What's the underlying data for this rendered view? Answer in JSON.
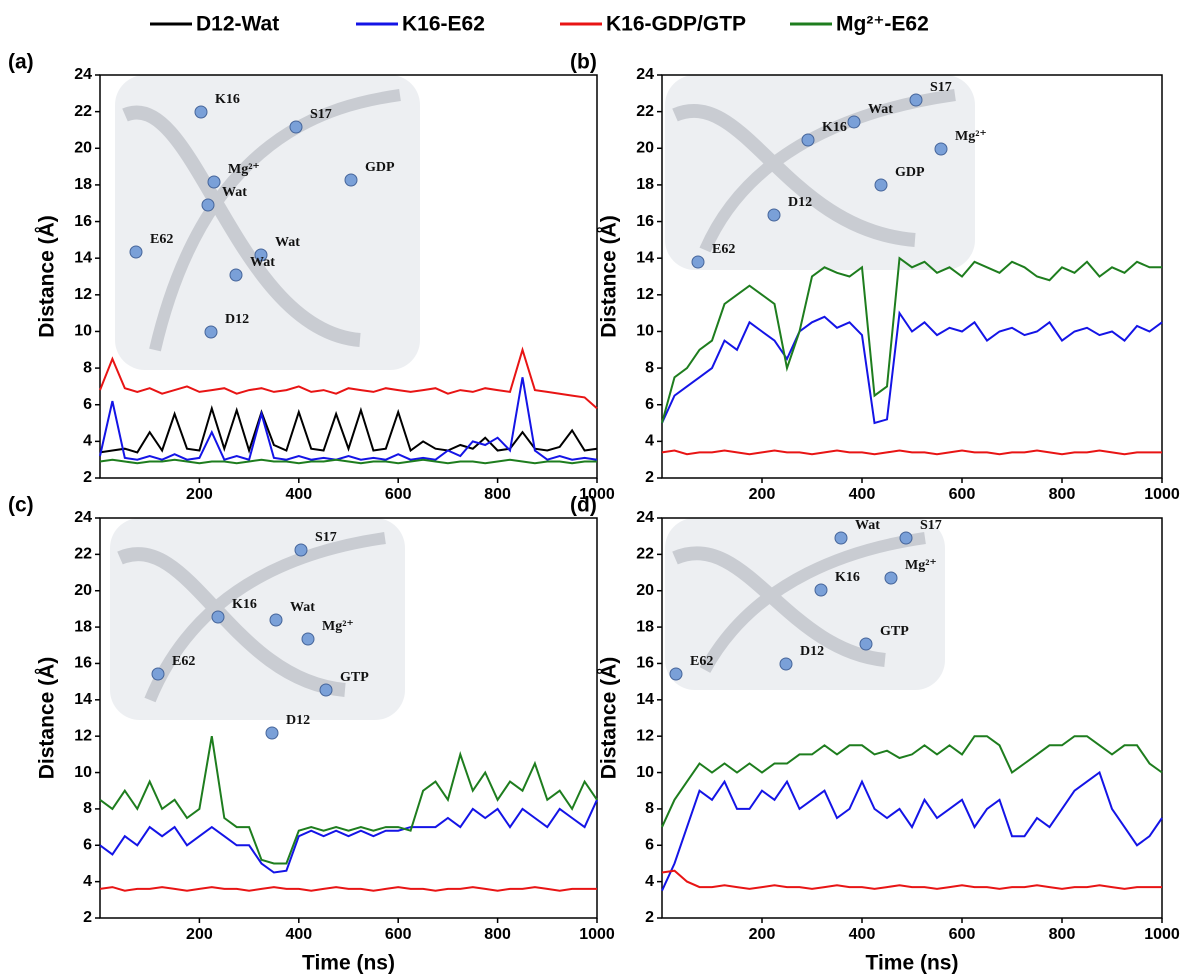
{
  "chart_data": [
    {
      "type": "line",
      "title": "(a)",
      "ylabel": "Distance (Å)",
      "x": [
        0,
        25,
        50,
        75,
        100,
        125,
        150,
        175,
        200,
        225,
        250,
        275,
        300,
        325,
        350,
        375,
        400,
        425,
        450,
        475,
        500,
        525,
        550,
        575,
        600,
        625,
        650,
        675,
        700,
        725,
        750,
        775,
        800,
        825,
        850,
        875,
        900,
        925,
        950,
        975,
        1000
      ],
      "xlim": [
        0,
        1000
      ],
      "ylim": [
        2,
        24
      ],
      "xticks": [
        200,
        400,
        600,
        800,
        1000
      ],
      "yticks": [
        2,
        4,
        6,
        8,
        10,
        12,
        14,
        16,
        18,
        20,
        22,
        24
      ],
      "series": [
        {
          "name": "D12-Wat",
          "color": "#000000",
          "values": [
            3.4,
            3.5,
            3.6,
            3.4,
            4.5,
            3.5,
            5.5,
            3.6,
            3.5,
            5.8,
            3.6,
            5.7,
            3.5,
            5.6,
            3.8,
            3.5,
            5.6,
            3.6,
            3.5,
            5.5,
            3.6,
            5.7,
            3.5,
            3.6,
            5.6,
            3.5,
            4.0,
            3.6,
            3.5,
            3.8,
            3.6,
            4.2,
            3.5,
            3.6,
            4.5,
            3.6,
            3.5,
            3.7,
            4.6,
            3.5,
            3.6
          ]
        },
        {
          "name": "K16-E62",
          "color": "#1414e6",
          "values": [
            3.2,
            6.2,
            3.1,
            3.0,
            3.2,
            3.0,
            3.3,
            3.0,
            3.1,
            4.5,
            3.0,
            3.2,
            3.0,
            5.5,
            3.1,
            3.0,
            3.2,
            3.0,
            3.1,
            3.0,
            3.2,
            3.0,
            3.1,
            3.0,
            3.3,
            3.0,
            3.1,
            3.0,
            3.5,
            3.2,
            4.0,
            3.8,
            4.2,
            3.5,
            7.5,
            3.5,
            3.0,
            3.2,
            3.0,
            3.1,
            3.0
          ]
        },
        {
          "name": "K16-GDP/GTP",
          "color": "#e81414",
          "values": [
            6.8,
            8.5,
            6.9,
            6.7,
            6.9,
            6.6,
            6.8,
            7.0,
            6.7,
            6.8,
            6.9,
            6.6,
            6.8,
            6.9,
            6.7,
            6.8,
            7.0,
            6.7,
            6.8,
            6.6,
            6.9,
            6.8,
            6.7,
            6.9,
            6.8,
            6.7,
            6.8,
            6.9,
            6.6,
            6.8,
            6.7,
            6.9,
            6.8,
            6.7,
            9.0,
            6.8,
            6.7,
            6.6,
            6.5,
            6.4,
            5.8
          ]
        },
        {
          "name": "Mg²⁺-E62",
          "color": "#1e7d1e",
          "values": [
            2.9,
            3.0,
            2.9,
            2.8,
            2.9,
            2.9,
            3.0,
            2.9,
            2.8,
            2.9,
            2.9,
            2.8,
            2.9,
            3.0,
            2.9,
            2.9,
            2.8,
            2.9,
            2.9,
            3.0,
            2.9,
            2.8,
            2.9,
            2.9,
            2.8,
            2.9,
            3.0,
            2.9,
            2.8,
            2.9,
            2.9,
            2.8,
            2.9,
            3.0,
            2.9,
            2.8,
            2.9,
            2.9,
            2.8,
            2.9,
            2.9
          ]
        }
      ],
      "inset_labels": [
        "K16",
        "S17",
        "GDP",
        "Mg²⁺",
        "Wat",
        "Wat",
        "Wat",
        "E62",
        "D12"
      ]
    },
    {
      "type": "line",
      "title": "(b)",
      "ylabel": "Distance (Å)",
      "x": [
        0,
        25,
        50,
        75,
        100,
        125,
        150,
        175,
        200,
        225,
        250,
        275,
        300,
        325,
        350,
        375,
        400,
        425,
        450,
        475,
        500,
        525,
        550,
        575,
        600,
        625,
        650,
        675,
        700,
        725,
        750,
        775,
        800,
        825,
        850,
        875,
        900,
        925,
        950,
        975,
        1000
      ],
      "xlim": [
        0,
        1000
      ],
      "ylim": [
        2,
        24
      ],
      "xticks": [
        200,
        400,
        600,
        800,
        1000
      ],
      "yticks": [
        2,
        4,
        6,
        8,
        10,
        12,
        14,
        16,
        18,
        20,
        22,
        24
      ],
      "series": [
        {
          "name": "K16-E62",
          "color": "#1414e6",
          "values": [
            5.0,
            6.5,
            7.0,
            7.5,
            8.0,
            9.5,
            9.0,
            10.5,
            10.0,
            9.5,
            8.5,
            10.0,
            10.5,
            10.8,
            10.2,
            10.5,
            9.8,
            5.0,
            5.2,
            11.0,
            10.0,
            10.5,
            9.8,
            10.2,
            10.0,
            10.5,
            9.5,
            10.0,
            10.2,
            9.8,
            10.0,
            10.5,
            9.5,
            10.0,
            10.2,
            9.8,
            10.0,
            9.5,
            10.3,
            10.0,
            10.5
          ]
        },
        {
          "name": "K16-GDP/GTP",
          "color": "#e81414",
          "values": [
            3.4,
            3.5,
            3.3,
            3.4,
            3.4,
            3.5,
            3.4,
            3.3,
            3.4,
            3.5,
            3.4,
            3.4,
            3.3,
            3.4,
            3.5,
            3.4,
            3.4,
            3.3,
            3.4,
            3.5,
            3.4,
            3.4,
            3.3,
            3.4,
            3.5,
            3.4,
            3.4,
            3.3,
            3.4,
            3.4,
            3.5,
            3.4,
            3.3,
            3.4,
            3.4,
            3.5,
            3.4,
            3.3,
            3.4,
            3.4,
            3.4
          ]
        },
        {
          "name": "Mg²⁺-E62",
          "color": "#1e7d1e",
          "values": [
            5.0,
            7.5,
            8.0,
            9.0,
            9.5,
            11.5,
            12.0,
            12.5,
            12.0,
            11.5,
            8.0,
            10.0,
            13.0,
            13.5,
            13.2,
            13.0,
            13.5,
            6.5,
            7.0,
            14.0,
            13.5,
            13.8,
            13.2,
            13.5,
            13.0,
            13.8,
            13.5,
            13.2,
            13.8,
            13.5,
            13.0,
            12.8,
            13.5,
            13.2,
            13.8,
            13.0,
            13.5,
            13.2,
            13.8,
            13.5,
            13.5
          ]
        }
      ],
      "inset_labels": [
        "S17",
        "Wat",
        "K16",
        "Mg²⁺",
        "GDP",
        "D12",
        "E62"
      ]
    },
    {
      "type": "line",
      "title": "(c)",
      "xlabel": "Time (ns)",
      "ylabel": "Distance (Å)",
      "x": [
        0,
        25,
        50,
        75,
        100,
        125,
        150,
        175,
        200,
        225,
        250,
        275,
        300,
        325,
        350,
        375,
        400,
        425,
        450,
        475,
        500,
        525,
        550,
        575,
        600,
        625,
        650,
        675,
        700,
        725,
        750,
        775,
        800,
        825,
        850,
        875,
        900,
        925,
        950,
        975,
        1000
      ],
      "xlim": [
        0,
        1000
      ],
      "ylim": [
        2,
        24
      ],
      "xticks": [
        200,
        400,
        600,
        800,
        1000
      ],
      "yticks": [
        2,
        4,
        6,
        8,
        10,
        12,
        14,
        16,
        18,
        20,
        22,
        24
      ],
      "series": [
        {
          "name": "K16-E62",
          "color": "#1414e6",
          "values": [
            6.0,
            5.5,
            6.5,
            6.0,
            7.0,
            6.5,
            7.0,
            6.0,
            6.5,
            7.0,
            6.5,
            6.0,
            6.0,
            5.0,
            4.5,
            4.6,
            6.5,
            6.8,
            6.5,
            6.8,
            6.5,
            6.8,
            6.5,
            6.8,
            6.8,
            7.0,
            7.0,
            7.0,
            7.5,
            7.0,
            8.0,
            7.5,
            8.0,
            7.0,
            8.0,
            7.5,
            7.0,
            8.0,
            7.5,
            7.0,
            8.5
          ]
        },
        {
          "name": "K16-GDP/GTP",
          "color": "#e81414",
          "values": [
            3.6,
            3.7,
            3.5,
            3.6,
            3.6,
            3.7,
            3.6,
            3.5,
            3.6,
            3.7,
            3.6,
            3.6,
            3.5,
            3.6,
            3.7,
            3.6,
            3.6,
            3.5,
            3.6,
            3.7,
            3.6,
            3.6,
            3.5,
            3.6,
            3.7,
            3.6,
            3.6,
            3.5,
            3.6,
            3.6,
            3.7,
            3.6,
            3.5,
            3.6,
            3.6,
            3.7,
            3.6,
            3.5,
            3.6,
            3.6,
            3.6
          ]
        },
        {
          "name": "Mg²⁺-E62",
          "color": "#1e7d1e",
          "values": [
            8.5,
            8.0,
            9.0,
            8.0,
            9.5,
            8.0,
            8.5,
            7.5,
            8.0,
            12.0,
            7.5,
            7.0,
            7.0,
            5.2,
            5.0,
            5.0,
            6.8,
            7.0,
            6.8,
            7.0,
            6.8,
            7.0,
            6.8,
            7.0,
            7.0,
            6.8,
            9.0,
            9.5,
            8.5,
            11.0,
            9.0,
            10.0,
            8.5,
            9.5,
            9.0,
            10.5,
            8.5,
            9.0,
            8.0,
            9.5,
            8.5
          ]
        }
      ],
      "inset_labels": [
        "S17",
        "K16",
        "Wat",
        "Mg²⁺",
        "E62",
        "GTP",
        "D12"
      ]
    },
    {
      "type": "line",
      "title": "(d)",
      "xlabel": "Time (ns)",
      "ylabel": "Distance (Å)",
      "x": [
        0,
        25,
        50,
        75,
        100,
        125,
        150,
        175,
        200,
        225,
        250,
        275,
        300,
        325,
        350,
        375,
        400,
        425,
        450,
        475,
        500,
        525,
        550,
        575,
        600,
        625,
        650,
        675,
        700,
        725,
        750,
        775,
        800,
        825,
        850,
        875,
        900,
        925,
        950,
        975,
        1000
      ],
      "xlim": [
        0,
        1000
      ],
      "ylim": [
        2,
        24
      ],
      "xticks": [
        200,
        400,
        600,
        800,
        1000
      ],
      "yticks": [
        2,
        4,
        6,
        8,
        10,
        12,
        14,
        16,
        18,
        20,
        22,
        24
      ],
      "series": [
        {
          "name": "K16-E62",
          "color": "#1414e6",
          "values": [
            3.5,
            5.0,
            7.0,
            9.0,
            8.5,
            9.5,
            8.0,
            8.0,
            9.0,
            8.5,
            9.5,
            8.0,
            8.5,
            9.0,
            7.5,
            8.0,
            9.5,
            8.0,
            7.5,
            8.0,
            7.0,
            8.5,
            7.5,
            8.0,
            8.5,
            7.0,
            8.0,
            8.5,
            6.5,
            6.5,
            7.5,
            7.0,
            8.0,
            9.0,
            9.5,
            10.0,
            8.0,
            7.0,
            6.0,
            6.5,
            7.5
          ]
        },
        {
          "name": "K16-GDP/GTP",
          "color": "#e81414",
          "values": [
            4.5,
            4.6,
            4.0,
            3.7,
            3.7,
            3.8,
            3.7,
            3.6,
            3.7,
            3.8,
            3.7,
            3.7,
            3.6,
            3.7,
            3.8,
            3.7,
            3.7,
            3.6,
            3.7,
            3.8,
            3.7,
            3.7,
            3.6,
            3.7,
            3.8,
            3.7,
            3.7,
            3.6,
            3.7,
            3.7,
            3.8,
            3.7,
            3.6,
            3.7,
            3.7,
            3.8,
            3.7,
            3.6,
            3.7,
            3.7,
            3.7
          ]
        },
        {
          "name": "Mg²⁺-E62",
          "color": "#1e7d1e",
          "values": [
            7.0,
            8.5,
            9.5,
            10.5,
            10.0,
            10.5,
            10.0,
            10.5,
            10.0,
            10.5,
            10.5,
            11.0,
            11.0,
            11.5,
            11.0,
            11.5,
            11.5,
            11.0,
            11.2,
            10.8,
            11.0,
            11.5,
            11.0,
            11.5,
            11.0,
            12.0,
            12.0,
            11.5,
            10.0,
            10.5,
            11.0,
            11.5,
            11.5,
            12.0,
            12.0,
            11.5,
            11.0,
            11.5,
            11.5,
            10.5,
            10.0
          ]
        }
      ],
      "inset_labels": [
        "Wat",
        "S17",
        "K16",
        "Mg²⁺",
        "GTP",
        "E62",
        "D12"
      ]
    }
  ]
}
